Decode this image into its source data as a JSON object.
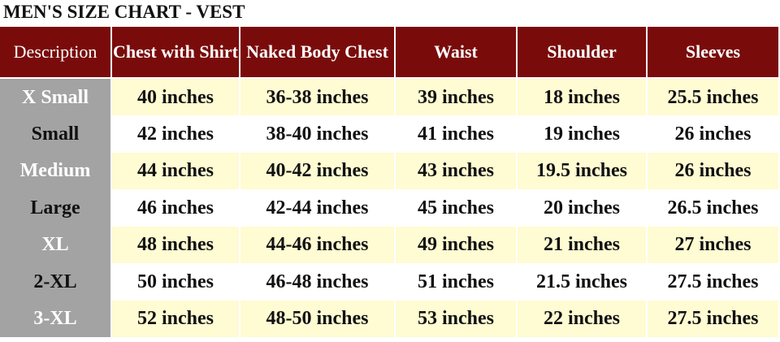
{
  "header": {
    "title": "MEN'S SIZE CHART - VEST"
  },
  "table": {
    "columns": [
      "Description",
      "Chest with Shirt",
      "Naked Body Chest",
      "Waist",
      "Shoulder",
      "Sleeves"
    ],
    "rows": [
      [
        "X Small",
        "40 inches",
        "36-38 inches",
        "39 inches",
        "18 inches",
        "25.5 inches"
      ],
      [
        "Small",
        "42 inches",
        "38-40 inches",
        "41 inches",
        "19 inches",
        "26 inches"
      ],
      [
        "Medium",
        "44 inches",
        "40-42 inches",
        "43 inches",
        "19.5 inches",
        "26 inches"
      ],
      [
        "Large",
        "46 inches",
        "42-44 inches",
        "45 inches",
        "20 inches",
        "26.5 inches"
      ],
      [
        "XL",
        "48 inches",
        "44-46 inches",
        "49 inches",
        "21 inches",
        "27 inches"
      ],
      [
        "2-XL",
        "50 inches",
        "46-48 inches",
        "51 inches",
        "21.5 inches",
        "27.5 inches"
      ],
      [
        "3-XL",
        "52 inches",
        "48-50 inches",
        "53 inches",
        "22 inches",
        "27.5 inches"
      ]
    ]
  }
}
